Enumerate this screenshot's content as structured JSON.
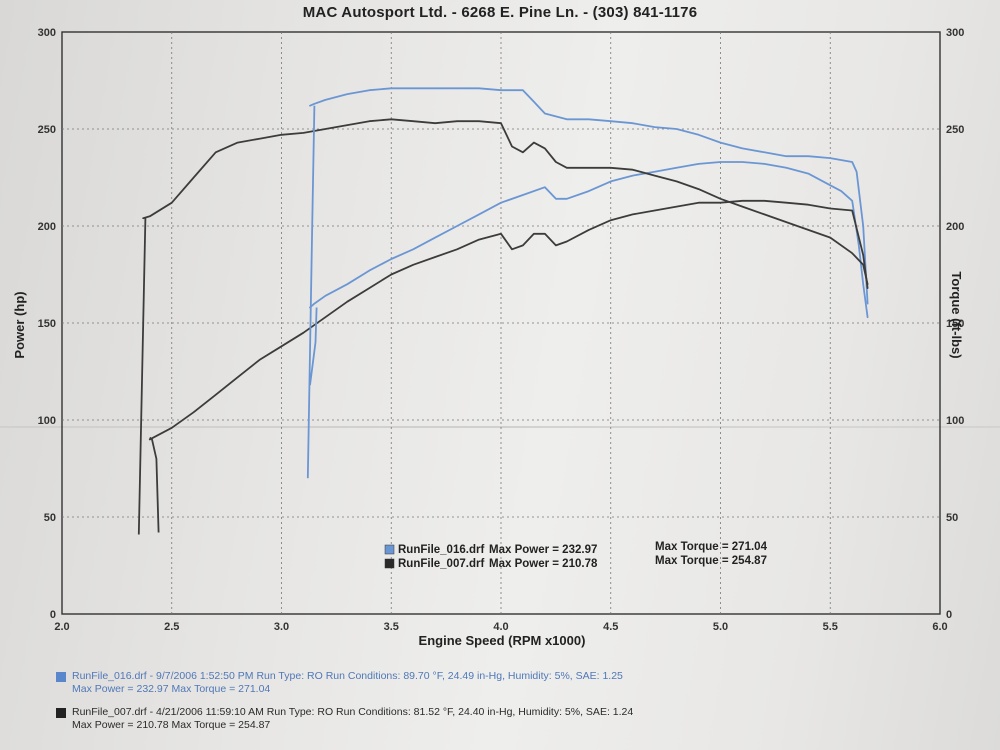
{
  "header": {
    "title": "MAC Autosport Ltd. - 6268 E. Pine Ln. - (303) 841-1176"
  },
  "colors": {
    "run016": "#6b96d4",
    "run007": "#3c3c3c",
    "grid": "#777777"
  },
  "chart_data": {
    "type": "line",
    "title": "",
    "xlabel": "Engine Speed (RPM x1000)",
    "ylabel_left": "Power (hp)",
    "ylabel_right": "Torque (ft-lbs)",
    "xlim": [
      2.0,
      6.0
    ],
    "ylim_left": [
      0,
      300
    ],
    "ylim_right": [
      0,
      300
    ],
    "x_ticks": [
      "2.0",
      "2.5",
      "3.0",
      "3.5",
      "4.0",
      "4.5",
      "5.0",
      "5.5",
      "6.0"
    ],
    "y_ticks_left": [
      "0",
      "50",
      "100",
      "150",
      "200",
      "250",
      "300"
    ],
    "y_ticks_right": [
      "0",
      "50",
      "100",
      "150",
      "200",
      "250",
      "300"
    ],
    "grid": true,
    "legend": {
      "entries": [
        {
          "file": "RunFile_016.drf",
          "power_label": "Max Power = 232.97",
          "torque_label": "Max Torque = 271.04"
        },
        {
          "file": "RunFile_007.drf",
          "power_label": "Max Power = 210.78",
          "torque_label": "Max Torque = 254.87"
        }
      ]
    },
    "series": [
      {
        "name": "RunFile_016.drf",
        "quantity": "power",
        "x": [
          3.13,
          3.15,
          3.2,
          3.3,
          3.4,
          3.5,
          3.6,
          3.7,
          3.8,
          3.9,
          4.0,
          4.1,
          4.2,
          4.25,
          4.3,
          4.4,
          4.5,
          4.6,
          4.7,
          4.8,
          4.9,
          5.0,
          5.1,
          5.2,
          5.3,
          5.4,
          5.5,
          5.55,
          5.6,
          5.63,
          5.65,
          5.67
        ],
        "y": [
          158,
          160,
          164,
          170,
          177,
          183,
          188,
          194,
          200,
          206,
          212,
          216,
          220,
          214,
          214,
          218,
          223,
          226,
          228,
          230,
          232,
          233,
          233,
          232,
          230,
          227,
          221,
          218,
          213,
          190,
          170,
          153
        ]
      },
      {
        "name": "RunFile_016.drf",
        "quantity": "torque",
        "x": [
          3.13,
          3.15,
          3.2,
          3.3,
          3.4,
          3.5,
          3.6,
          3.7,
          3.8,
          3.9,
          4.0,
          4.1,
          4.15,
          4.2,
          4.3,
          4.4,
          4.5,
          4.6,
          4.7,
          4.8,
          4.9,
          5.0,
          5.1,
          5.2,
          5.3,
          5.4,
          5.5,
          5.6,
          5.62,
          5.65,
          5.67
        ],
        "y": [
          262,
          263,
          265,
          268,
          270,
          271,
          271,
          271,
          271,
          271,
          270,
          270,
          264,
          258,
          255,
          255,
          254,
          253,
          251,
          250,
          247,
          243,
          240,
          238,
          236,
          236,
          235,
          233,
          228,
          200,
          160
        ]
      },
      {
        "name": "RunFile_007.drf",
        "quantity": "power",
        "x": [
          2.4,
          2.5,
          2.6,
          2.7,
          2.8,
          2.9,
          3.0,
          3.1,
          3.2,
          3.3,
          3.4,
          3.5,
          3.6,
          3.7,
          3.8,
          3.9,
          4.0,
          4.05,
          4.1,
          4.15,
          4.2,
          4.25,
          4.3,
          4.4,
          4.5,
          4.6,
          4.7,
          4.8,
          4.9,
          5.0,
          5.1,
          5.2,
          5.3,
          5.4,
          5.5,
          5.6,
          5.65,
          5.67
        ],
        "y": [
          90,
          96,
          104,
          113,
          122,
          131,
          138,
          145,
          153,
          161,
          168,
          175,
          180,
          184,
          188,
          193,
          196,
          188,
          190,
          196,
          196,
          190,
          192,
          198,
          203,
          206,
          208,
          210,
          212,
          212,
          213,
          213,
          212,
          211,
          209,
          208,
          185,
          168
        ]
      },
      {
        "name": "RunFile_007.drf",
        "quantity": "torque",
        "x": [
          2.37,
          2.4,
          2.5,
          2.6,
          2.7,
          2.8,
          2.9,
          3.0,
          3.1,
          3.2,
          3.3,
          3.4,
          3.5,
          3.6,
          3.7,
          3.8,
          3.9,
          4.0,
          4.05,
          4.1,
          4.15,
          4.2,
          4.25,
          4.3,
          4.4,
          4.5,
          4.6,
          4.7,
          4.8,
          4.9,
          5.0,
          5.1,
          5.2,
          5.3,
          5.4,
          5.5,
          5.6,
          5.65,
          5.67
        ],
        "y": [
          204,
          205,
          212,
          225,
          238,
          243,
          245,
          247,
          248,
          250,
          252,
          254,
          255,
          254,
          253,
          254,
          254,
          253,
          241,
          238,
          243,
          240,
          233,
          230,
          230,
          230,
          229,
          226,
          223,
          219,
          214,
          210,
          206,
          202,
          198,
          194,
          186,
          180,
          170
        ]
      }
    ]
  },
  "footer": {
    "runs": [
      {
        "line1": "RunFile_016.drf - 9/7/2006 1:52:50 PM  Run Type: RO  Run Conditions: 89.70 °F, 24.49 in-Hg,  Humidity:  5%, SAE: 1.25",
        "line2": "Max Power = 232.97  Max Torque = 271.04"
      },
      {
        "line1": "RunFile_007.drf - 4/21/2006 11:59:10 AM  Run Type: RO  Run Conditions: 81.52 °F, 24.40 in-Hg,  Humidity:  5%, SAE: 1.24",
        "line2": "Max Power = 210.78  Max Torque = 254.87"
      }
    ]
  }
}
